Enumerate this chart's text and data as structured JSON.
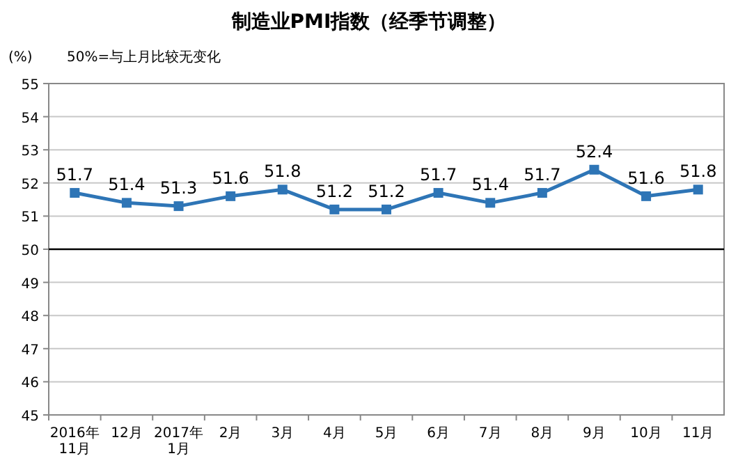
{
  "chart_data": {
    "type": "line",
    "title": "制造业PMI指数（经季节调整）",
    "subtitle": "50%=与上月比较无变化",
    "ylabel": "(%)",
    "categories": [
      "2016年\n11月",
      "12月",
      "2017年\n1月",
      "2月",
      "3月",
      "4月",
      "5月",
      "6月",
      "7月",
      "8月",
      "9月",
      "10月",
      "11月"
    ],
    "series": [
      {
        "color": "#2e75b6",
        "values": [
          51.7,
          51.4,
          51.3,
          51.6,
          51.8,
          51.2,
          51.2,
          51.7,
          51.4,
          51.7,
          52.4,
          51.6,
          51.8
        ]
      }
    ],
    "ylim": [
      45,
      55
    ],
    "yticks": [
      45,
      46,
      47,
      48,
      49,
      50,
      51,
      52,
      53,
      54,
      55
    ],
    "ref_lines": [
      {
        "axis": "y",
        "value": 50,
        "color": "#000000"
      }
    ],
    "grid": "y",
    "marker": "square",
    "line_style": "solid",
    "data_labels": true
  }
}
